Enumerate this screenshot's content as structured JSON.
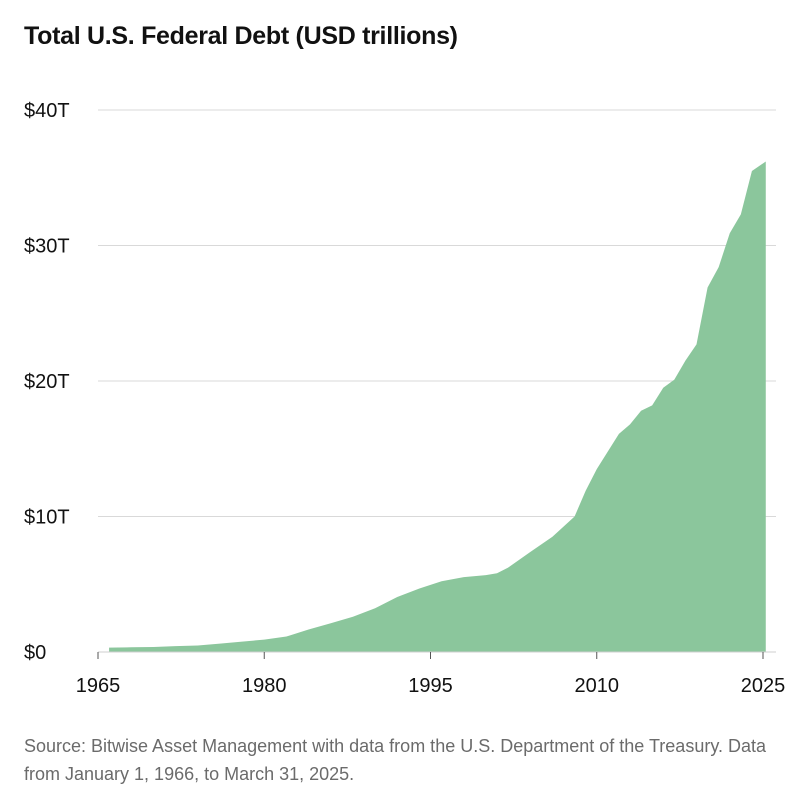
{
  "chart_data": {
    "type": "area",
    "title": "Total U.S. Federal Debt (USD trillions)",
    "xlabel": "",
    "ylabel": "",
    "xlim": [
      1965,
      2025
    ],
    "ylim": [
      0,
      40
    ],
    "x_ticks": [
      1965,
      1980,
      1995,
      2010,
      2025
    ],
    "y_ticks": [
      0,
      10,
      20,
      30,
      40
    ],
    "x_tick_labels": [
      "1965",
      "1980",
      "1995",
      "2010",
      "2025"
    ],
    "y_tick_labels": [
      "$0",
      "$10T",
      "$20T",
      "$30T",
      "$40T"
    ],
    "grid": true,
    "color": "#8bc69c",
    "series": [
      {
        "x": [
          1966,
          1968,
          1970,
          1972,
          1974,
          1976,
          1978,
          1980,
          1982,
          1984,
          1986,
          1988,
          1990,
          1992,
          1994,
          1996,
          1998,
          2000,
          2001,
          2002,
          2004,
          2006,
          2008,
          2009,
          2010,
          2011,
          2012,
          2013,
          2014,
          2015,
          2016,
          2017,
          2018,
          2019,
          2020,
          2021,
          2022,
          2023,
          2024,
          2025.25
        ],
        "y": [
          0.32,
          0.35,
          0.37,
          0.43,
          0.48,
          0.62,
          0.77,
          0.91,
          1.14,
          1.66,
          2.12,
          2.6,
          3.23,
          4.06,
          4.69,
          5.22,
          5.53,
          5.67,
          5.81,
          6.23,
          7.38,
          8.51,
          10.0,
          11.9,
          13.5,
          14.8,
          16.1,
          16.8,
          17.8,
          18.2,
          19.5,
          20.1,
          21.5,
          22.7,
          26.9,
          28.4,
          30.9,
          32.3,
          35.5,
          36.2
        ]
      }
    ]
  },
  "source_text": "Source: Bitwise Asset Management with data from the U.S. Department of the Treasury. Data from January 1, 1966, to March 31, 2025."
}
